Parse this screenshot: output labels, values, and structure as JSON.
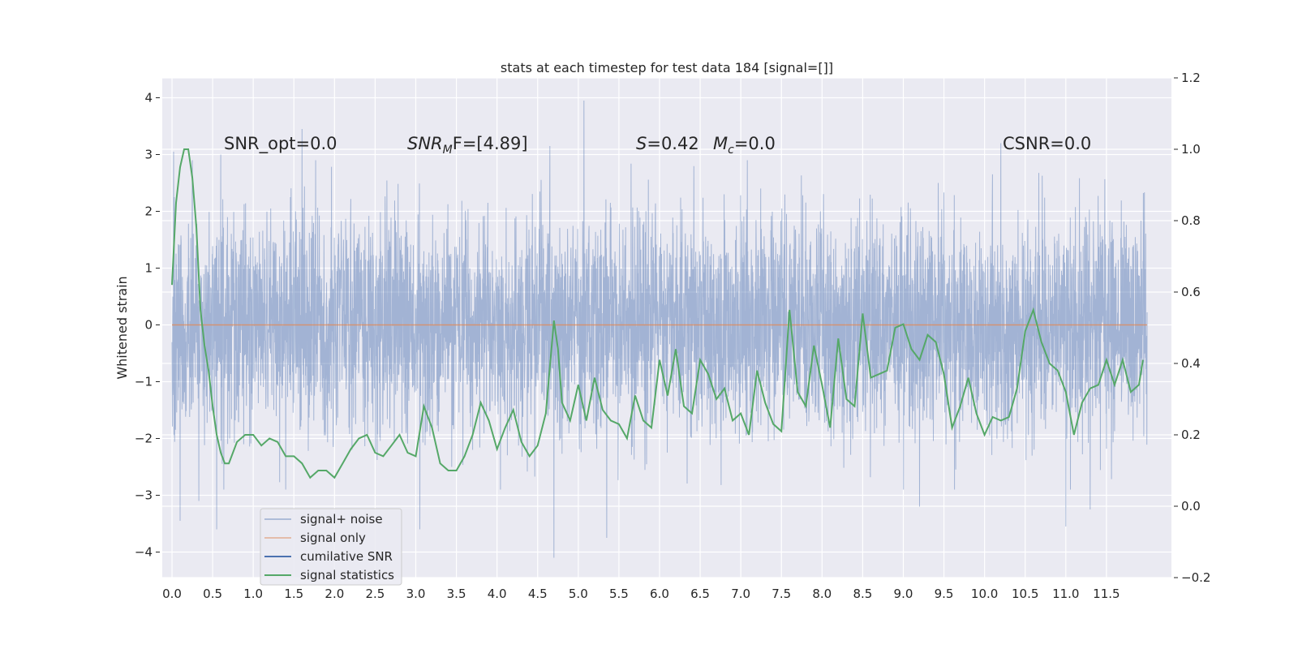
{
  "chart_data": {
    "type": "line",
    "title": "stats at each timestep for test data 184 [signal=[]]",
    "ylabel": "Whitened strain",
    "xlim": [
      -0.12,
      12.3
    ],
    "ylim": [
      -4.45,
      4.35
    ],
    "y2lim": [
      -0.2,
      1.2
    ],
    "grid": true,
    "x_ticks": [
      0.0,
      0.5,
      1.0,
      1.5,
      2.0,
      2.5,
      3.0,
      3.5,
      4.0,
      4.5,
      5.0,
      5.5,
      6.0,
      6.5,
      7.0,
      7.5,
      8.0,
      8.5,
      9.0,
      9.5,
      10.0,
      10.5,
      11.0,
      11.5
    ],
    "x_tick_labels": [
      "0.0",
      "0.5",
      "1.0",
      "1.5",
      "2.0",
      "2.5",
      "3.0",
      "3.5",
      "4.0",
      "4.5",
      "5.0",
      "5.5",
      "6.0",
      "6.5",
      "7.0",
      "7.5",
      "8.0",
      "8.5",
      "9.0",
      "9.5",
      "10.0",
      "10.5",
      "11.0",
      "11.5"
    ],
    "y_ticks": [
      4,
      3,
      2,
      1,
      0,
      -1,
      -2,
      -3,
      -4
    ],
    "y_tick_labels": [
      "4",
      "3",
      "2",
      "1",
      "0",
      "−1",
      "−2",
      "−3",
      "−4"
    ],
    "y2_ticks": [
      1.2,
      1.0,
      0.8,
      0.6,
      0.4,
      0.2,
      0.0,
      -0.2
    ],
    "y2_tick_labels": [
      "1.2",
      "1.0",
      "0.8",
      "0.6",
      "0.4",
      "0.2",
      "0.0",
      "−0.2"
    ],
    "legend_position": "lower-left",
    "legend": [
      {
        "label": "signal+ noise",
        "color": "#4c72b0"
      },
      {
        "label": "signal only",
        "color": "#dd8452"
      },
      {
        "label": "cumilative SNR",
        "color": "#4c72b0"
      },
      {
        "label": "signal statistics",
        "color": "#55a868"
      }
    ],
    "annotations": {
      "snr_opt": "SNR_opt=0.0",
      "snr_mf": "SNR",
      "snr_mf_sub": "M",
      "snr_mf_rest": "F=[4.89]",
      "s_label": "S",
      "s_value": "=0.42",
      "mc_label": "M",
      "mc_sub": "c",
      "mc_value": "=0.0",
      "csnr": "CSNR=0.0"
    },
    "noise_series": {
      "name": "signal+ noise",
      "x_range": [
        0.0,
        12.0
      ],
      "sigma": 1.0,
      "extremes": [
        {
          "x": 0.02,
          "y": 3.05
        },
        {
          "x": 0.1,
          "y": -3.45
        },
        {
          "x": 0.33,
          "y": -3.1
        },
        {
          "x": 0.55,
          "y": -3.6
        },
        {
          "x": 1.6,
          "y": 3.45
        },
        {
          "x": 3.05,
          "y": -3.6
        },
        {
          "x": 4.7,
          "y": -4.1
        },
        {
          "x": 5.07,
          "y": 3.95
        },
        {
          "x": 5.35,
          "y": -3.75
        },
        {
          "x": 9.2,
          "y": -3.2
        },
        {
          "x": 11.0,
          "y": -3.55
        },
        {
          "x": 11.3,
          "y": -3.25
        },
        {
          "x": 10.2,
          "y": 3.2
        },
        {
          "x": 4.65,
          "y": 3.15
        },
        {
          "x": 0.6,
          "y": 3.0
        }
      ]
    },
    "signal_only": {
      "name": "signal only",
      "y": 0.0,
      "x_range": [
        0.0,
        12.0
      ]
    },
    "signal_statistics": {
      "name": "signal statistics",
      "x": [
        0.0,
        0.05,
        0.1,
        0.15,
        0.2,
        0.25,
        0.3,
        0.35,
        0.4,
        0.45,
        0.5,
        0.55,
        0.6,
        0.65,
        0.7,
        0.8,
        0.9,
        1.0,
        1.1,
        1.2,
        1.3,
        1.4,
        1.5,
        1.6,
        1.7,
        1.8,
        1.9,
        2.0,
        2.1,
        2.2,
        2.3,
        2.4,
        2.5,
        2.6,
        2.7,
        2.8,
        2.9,
        3.0,
        3.1,
        3.2,
        3.3,
        3.4,
        3.5,
        3.6,
        3.7,
        3.8,
        3.9,
        4.0,
        4.1,
        4.2,
        4.3,
        4.4,
        4.5,
        4.6,
        4.7,
        4.75,
        4.8,
        4.9,
        5.0,
        5.1,
        5.2,
        5.3,
        5.4,
        5.5,
        5.6,
        5.7,
        5.8,
        5.9,
        6.0,
        6.1,
        6.2,
        6.3,
        6.4,
        6.5,
        6.6,
        6.7,
        6.8,
        6.9,
        7.0,
        7.1,
        7.2,
        7.3,
        7.4,
        7.5,
        7.6,
        7.7,
        7.8,
        7.9,
        8.0,
        8.1,
        8.2,
        8.3,
        8.4,
        8.5,
        8.6,
        8.7,
        8.8,
        8.9,
        9.0,
        9.1,
        9.2,
        9.3,
        9.4,
        9.5,
        9.6,
        9.7,
        9.8,
        9.9,
        10.0,
        10.1,
        10.2,
        10.3,
        10.4,
        10.5,
        10.6,
        10.7,
        10.8,
        10.9,
        11.0,
        11.1,
        11.2,
        11.3,
        11.4,
        11.5,
        11.6,
        11.7,
        11.8,
        11.9,
        11.95
      ],
      "values": [
        0.62,
        0.85,
        0.95,
        1.0,
        1.0,
        0.92,
        0.78,
        0.55,
        0.45,
        0.38,
        0.28,
        0.2,
        0.15,
        0.12,
        0.12,
        0.18,
        0.2,
        0.2,
        0.17,
        0.19,
        0.18,
        0.14,
        0.14,
        0.12,
        0.08,
        0.1,
        0.1,
        0.08,
        0.12,
        0.16,
        0.19,
        0.2,
        0.15,
        0.14,
        0.17,
        0.2,
        0.15,
        0.14,
        0.28,
        0.22,
        0.12,
        0.1,
        0.1,
        0.14,
        0.2,
        0.29,
        0.24,
        0.16,
        0.22,
        0.27,
        0.18,
        0.14,
        0.17,
        0.26,
        0.52,
        0.44,
        0.29,
        0.24,
        0.34,
        0.24,
        0.36,
        0.27,
        0.24,
        0.23,
        0.19,
        0.31,
        0.24,
        0.22,
        0.41,
        0.31,
        0.44,
        0.28,
        0.26,
        0.41,
        0.37,
        0.3,
        0.33,
        0.24,
        0.26,
        0.2,
        0.38,
        0.29,
        0.23,
        0.21,
        0.55,
        0.32,
        0.28,
        0.45,
        0.34,
        0.22,
        0.47,
        0.3,
        0.28,
        0.54,
        0.36,
        0.37,
        0.38,
        0.5,
        0.51,
        0.44,
        0.41,
        0.48,
        0.46,
        0.37,
        0.22,
        0.28,
        0.36,
        0.26,
        0.2,
        0.25,
        0.24,
        0.25,
        0.33,
        0.49,
        0.55,
        0.46,
        0.4,
        0.38,
        0.32,
        0.2,
        0.29,
        0.33,
        0.34,
        0.41,
        0.34,
        0.41,
        0.32,
        0.34,
        0.41
      ]
    }
  }
}
